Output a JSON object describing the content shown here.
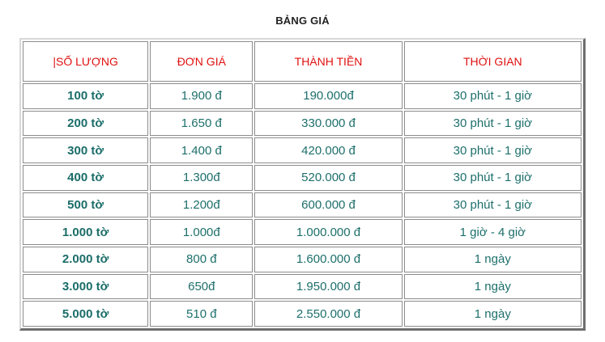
{
  "title": "BẢNG GIÁ",
  "headers": {
    "quantity": "|SỐ LƯỢNG",
    "unit_price": "ĐƠN GIÁ",
    "total": "THÀNH TIỀN",
    "time": "THỜI GIAN"
  },
  "rows": [
    {
      "quantity": "100 tờ",
      "unit_price": "1.900 đ",
      "total": "190.000đ",
      "time": "30 phút - 1 giờ"
    },
    {
      "quantity": "200 tờ",
      "unit_price": "1.650 đ",
      "total": "330.000 đ",
      "time": "30 phút - 1 giờ"
    },
    {
      "quantity": "300 tờ",
      "unit_price": "1.400 đ",
      "total": "420.000 đ",
      "time": "30 phút - 1 giờ"
    },
    {
      "quantity": "400 tờ",
      "unit_price": "1.300đ",
      "total": "520.000 đ",
      "time": "30 phút - 1 giờ"
    },
    {
      "quantity": "500 tờ",
      "unit_price": "1.200đ",
      "total": "600.000 đ",
      "time": "30 phút - 1 giờ"
    },
    {
      "quantity": "1.000 tờ",
      "unit_price": "1.000đ",
      "total": "1.000.000 đ",
      "time": "1 giờ - 4 giờ"
    },
    {
      "quantity": "2.000 tờ",
      "unit_price": "800 đ",
      "total": "1.600.000 đ",
      "time": "1 ngày"
    },
    {
      "quantity": "3.000 tờ",
      "unit_price": "650đ",
      "total": "1.950.000 đ",
      "time": "1 ngày"
    },
    {
      "quantity": "5.000 tờ",
      "unit_price": "510 đ",
      "total": "2.550.000 đ",
      "time": "1 ngày"
    }
  ],
  "colors": {
    "header_text": "#e01010",
    "cell_text": "#1d6f6b",
    "border": "#8c8c8c"
  }
}
